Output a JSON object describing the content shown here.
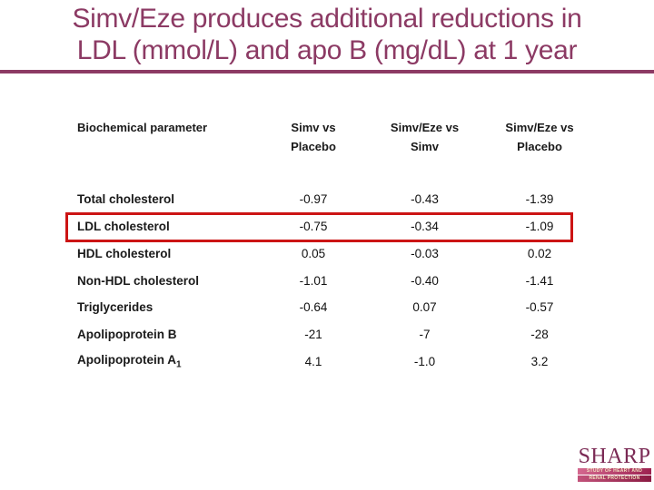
{
  "title": {
    "line1": "Simv/Eze produces additional reductions in",
    "line2": "LDL (mmol/L) and apo B (mg/dL) at 1 year"
  },
  "colors": {
    "title_maroon": "#8c3a64",
    "highlight_red": "#cc1414",
    "logo_maroon": "#7b2a55",
    "logo_banner_pink": "#9c2150"
  },
  "table": {
    "headers": {
      "param": "Biochemical parameter",
      "col1": "Simv vs\nPlacebo",
      "col2": "Simv/Eze vs\nSimv",
      "col3": "Simv/Eze vs\nPlacebo"
    },
    "rows": [
      {
        "parameter": "Total cholesterol",
        "values": [
          "-0.97",
          "-0.43",
          "-1.39"
        ]
      },
      {
        "parameter": "LDL cholesterol",
        "values": [
          "-0.75",
          "-0.34",
          "-1.09"
        ],
        "highlighted": true
      },
      {
        "parameter": "HDL cholesterol",
        "values": [
          "0.05",
          "-0.03",
          "0.02"
        ]
      },
      {
        "parameter": "Non-HDL cholesterol",
        "values": [
          "-1.01",
          "-0.40",
          "-1.41"
        ]
      },
      {
        "parameter": "Triglycerides",
        "values": [
          "-0.64",
          "0.07",
          "-0.57"
        ]
      },
      {
        "parameter": "Apolipoprotein B",
        "values": [
          "-21",
          "-7",
          "-28"
        ]
      },
      {
        "parameter": "Apolipoprotein A",
        "parameter_sub": "1",
        "values": [
          "4.1",
          "-1.0",
          "3.2"
        ]
      }
    ]
  },
  "chart_data": {
    "type": "table",
    "title": "Simv/Eze produces additional reductions in LDL (mmol/L) and apo B (mg/dL) at 1 year",
    "columns": [
      "Biochemical parameter",
      "Simv vs Placebo",
      "Simv/Eze vs Simv",
      "Simv/Eze vs Placebo"
    ],
    "rows": [
      [
        "Total cholesterol",
        -0.97,
        -0.43,
        -1.39
      ],
      [
        "LDL cholesterol",
        -0.75,
        -0.34,
        -1.09
      ],
      [
        "HDL cholesterol",
        0.05,
        -0.03,
        0.02
      ],
      [
        "Non-HDL cholesterol",
        -1.01,
        -0.4,
        -1.41
      ],
      [
        "Triglycerides",
        -0.64,
        0.07,
        -0.57
      ],
      [
        "Apolipoprotein B",
        -21,
        -7,
        -28
      ],
      [
        "Apolipoprotein A1",
        4.1,
        -1.0,
        3.2
      ]
    ],
    "highlighted_row": "LDL cholesterol"
  },
  "logo": {
    "name": "SHARP",
    "tagline1": "STUDY OF HEART AND",
    "tagline2": "RENAL PROTECTION"
  }
}
